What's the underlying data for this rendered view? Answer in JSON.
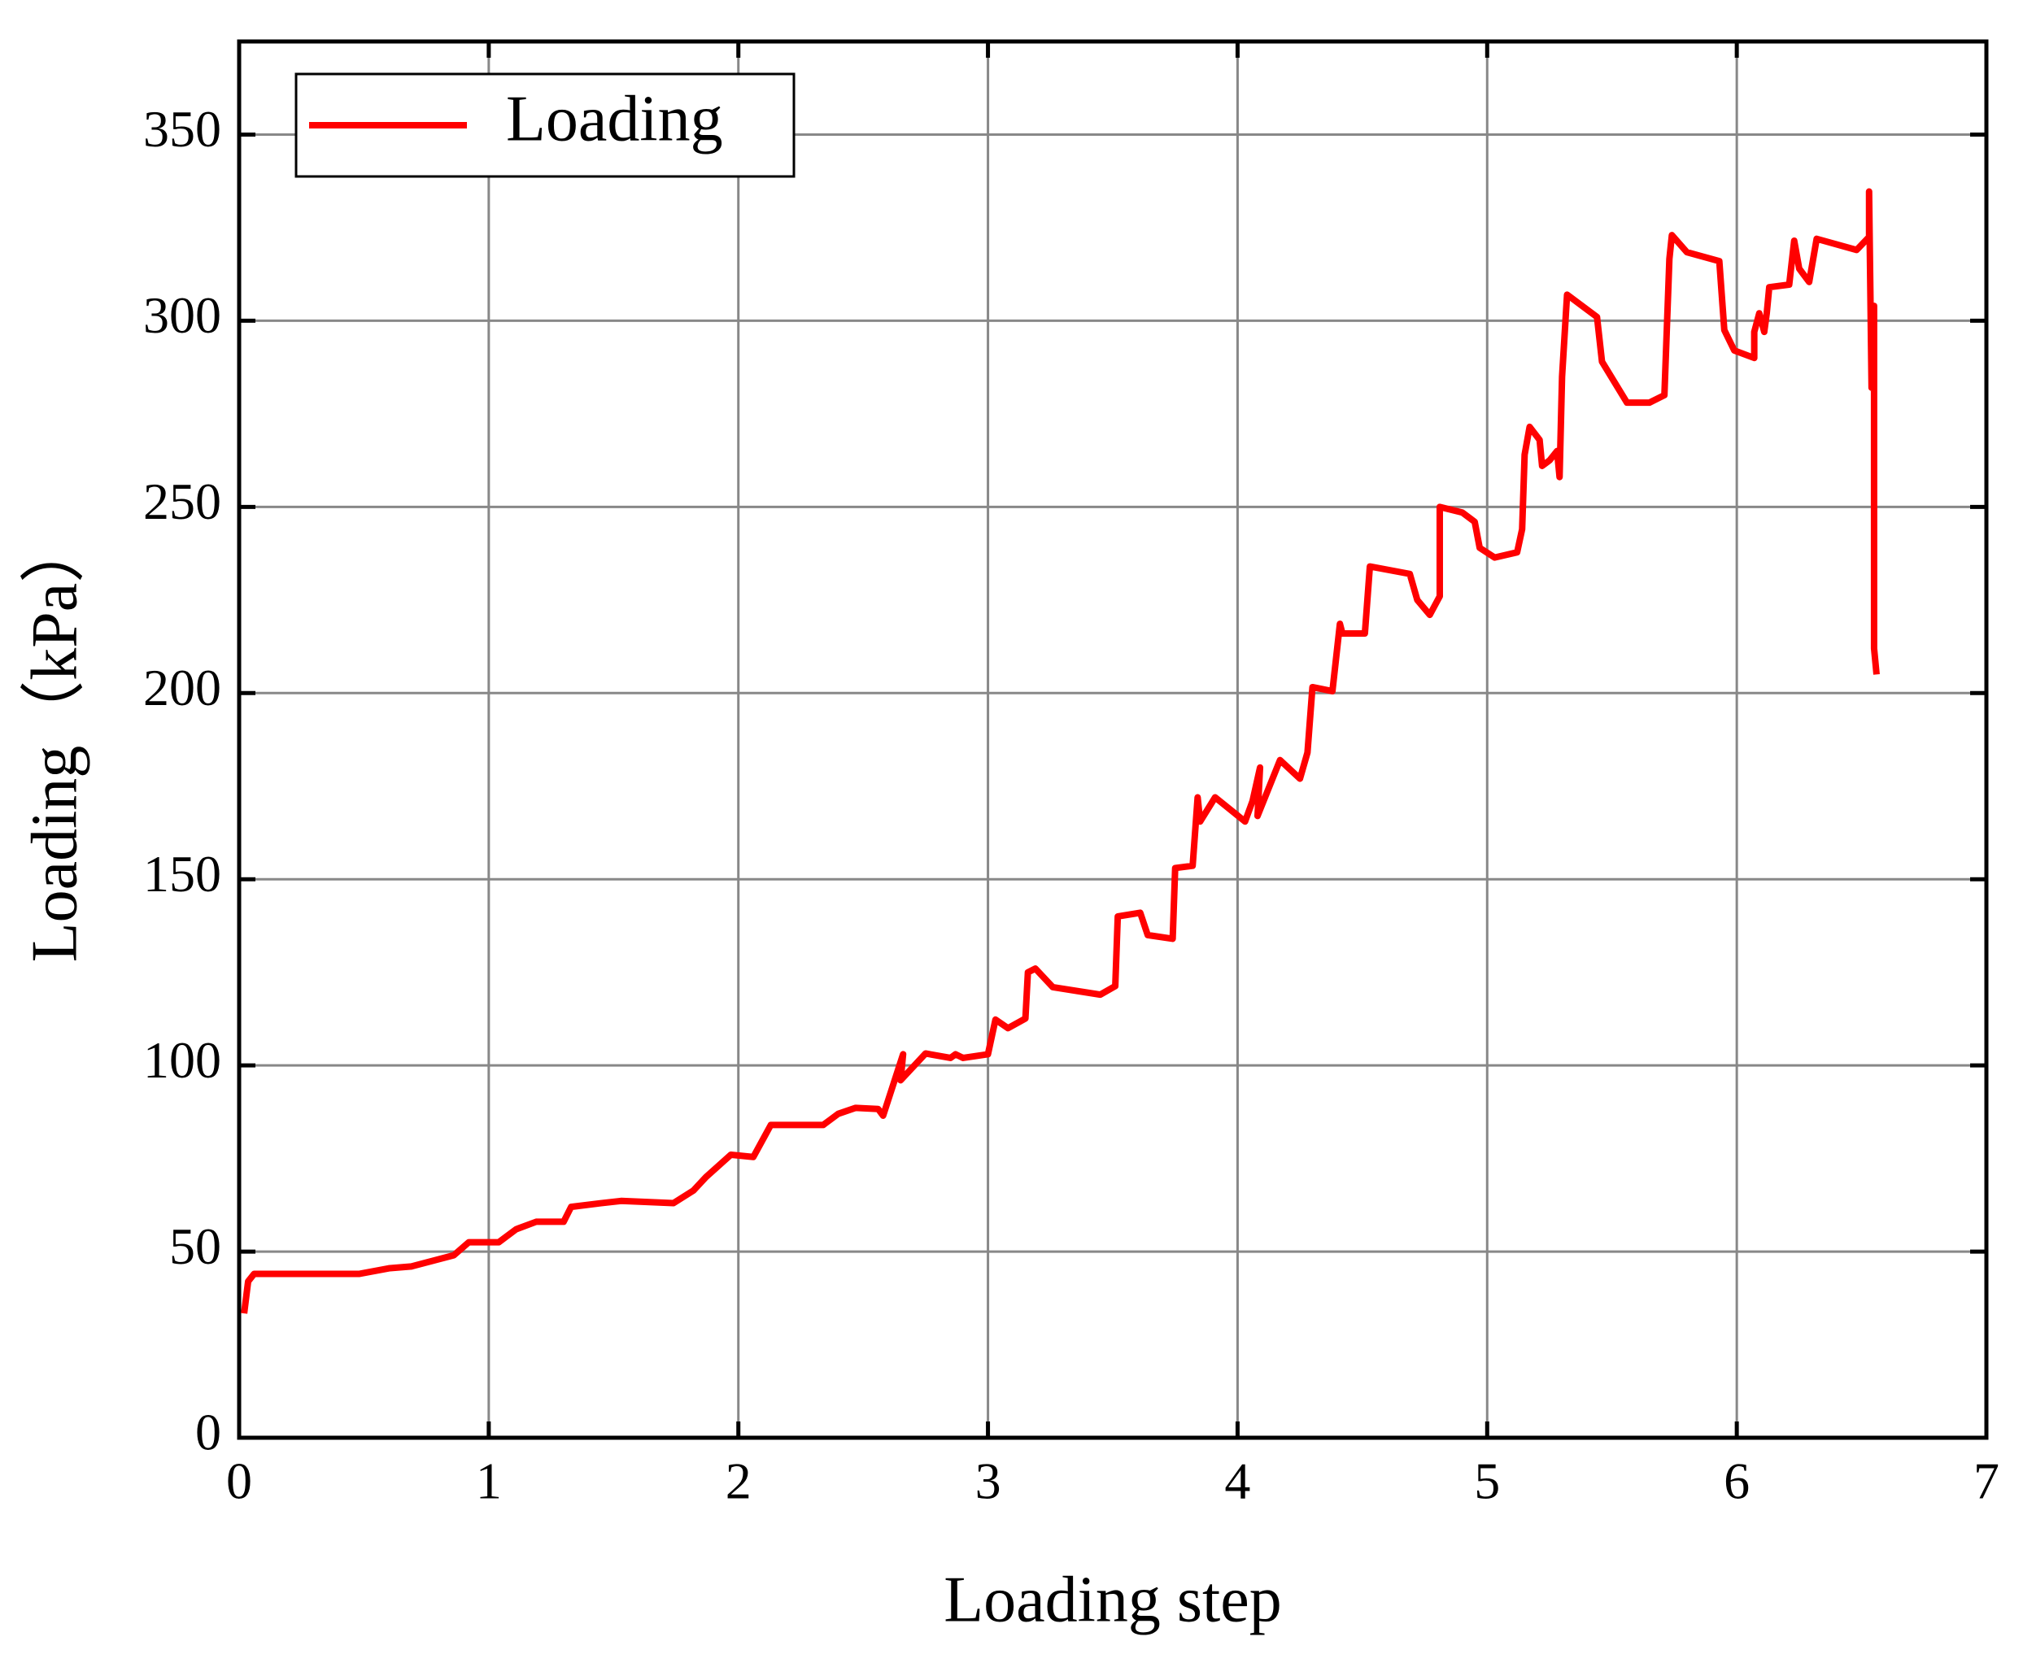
{
  "chart_data": {
    "type": "line",
    "xlabel": "Loading step",
    "ylabel": "Loading（kPa）",
    "xlim": [
      0,
      7
    ],
    "ylim": [
      0,
      375
    ],
    "xticks": [
      0,
      1,
      2,
      3,
      4,
      5,
      6,
      7
    ],
    "yticks": [
      0,
      50,
      100,
      150,
      200,
      250,
      300,
      350
    ],
    "grid": true,
    "legend": "upper left",
    "series": [
      {
        "name": "Loading",
        "color": "#ff0000",
        "x": [
          0.02,
          0.036,
          0.06,
          0.48,
          0.6,
          0.69,
          0.86,
          0.92,
          1.04,
          1.11,
          1.19,
          1.3,
          1.33,
          1.45,
          1.53,
          1.74,
          1.82,
          1.87,
          1.97,
          2.06,
          2.13,
          2.34,
          2.4,
          2.47,
          2.56,
          2.58,
          2.66,
          2.65,
          2.75,
          2.85,
          2.87,
          2.9,
          3.0,
          3.03,
          3.08,
          3.15,
          3.16,
          3.19,
          3.26,
          3.45,
          3.51,
          3.52,
          3.61,
          3.64,
          3.74,
          3.75,
          3.82,
          3.84,
          3.85,
          3.91,
          4.03,
          4.06,
          4.09,
          4.08,
          4.17,
          4.25,
          4.28,
          4.3,
          4.38,
          4.41,
          4.42,
          4.51,
          4.53,
          4.69,
          4.72,
          4.77,
          4.81,
          4.81,
          4.9,
          4.95,
          4.97,
          5.03,
          5.12,
          5.14,
          5.15,
          5.17,
          5.21,
          5.22,
          5.25,
          5.28,
          5.29,
          5.3,
          5.32,
          5.44,
          5.46,
          5.56,
          5.65,
          5.71,
          5.73,
          5.74,
          5.8,
          5.93,
          5.95,
          5.99,
          6.07,
          6.07,
          6.09,
          6.11,
          6.12,
          6.13,
          6.21,
          6.23,
          6.25,
          6.29,
          6.32,
          6.48,
          6.53,
          6.53,
          6.54,
          6.55,
          6.55,
          6.56
        ],
        "values": [
          33.4,
          42,
          44,
          44,
          45.5,
          46,
          49,
          52.5,
          52.5,
          56,
          58,
          58,
          62,
          63,
          63.6,
          63,
          66.4,
          70,
          76,
          75.4,
          84,
          84,
          87,
          88.6,
          88.3,
          86.5,
          103,
          96,
          103.2,
          102,
          103,
          102,
          103,
          112.3,
          110,
          112.6,
          125,
          126,
          121,
          119,
          121.3,
          140,
          141,
          135,
          134,
          153,
          153.6,
          172,
          165.5,
          172,
          165.5,
          171,
          180,
          167,
          182,
          177,
          184,
          201.6,
          200.5,
          218.6,
          216,
          216,
          234,
          232,
          225,
          221,
          226,
          250,
          248.5,
          246,
          239,
          236.4,
          237.8,
          244,
          264,
          271.5,
          268,
          261,
          262.5,
          265,
          258,
          285,
          307,
          301,
          289,
          278,
          278,
          280,
          316.6,
          323,
          318.4,
          316,
          297.5,
          292,
          290,
          297,
          302,
          297,
          302,
          309,
          309.7,
          321.5,
          314,
          310.4,
          322,
          319,
          322.5,
          334.7,
          282,
          304,
          212,
          205
        ]
      }
    ]
  }
}
